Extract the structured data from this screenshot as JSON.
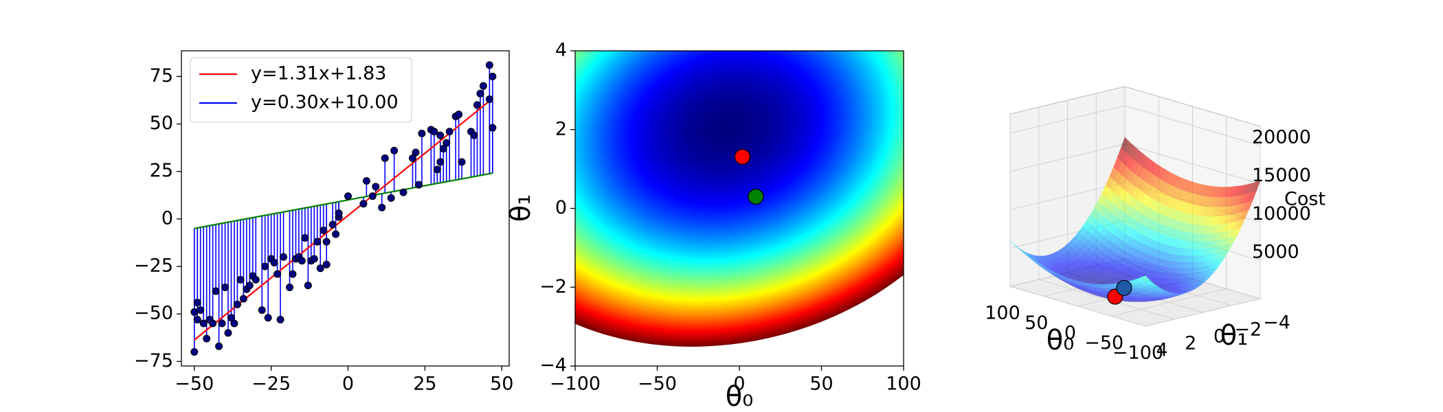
{
  "chart_data": [
    {
      "type": "scatter",
      "points": {
        "color": "#000080",
        "x": [
          -50,
          -50,
          -49,
          -49,
          -48,
          -47,
          -46,
          -45,
          -44,
          -43,
          -42,
          -41,
          -40,
          -39,
          -38,
          -37,
          -36,
          -35,
          -34,
          -33,
          -32,
          -31,
          -30,
          -28,
          -27,
          -26,
          -25,
          -24,
          -23,
          -22,
          -21,
          -19,
          -18,
          -17,
          -16,
          -15,
          -14,
          -13,
          -12,
          -11,
          -10,
          -9,
          -8,
          -7,
          -7,
          -5,
          -4,
          -3,
          -3,
          0,
          5,
          6,
          8,
          9,
          11,
          12,
          14,
          15,
          18,
          21,
          22,
          23,
          24,
          27,
          28,
          29,
          30,
          30,
          31,
          32,
          33,
          35,
          36,
          37,
          40,
          41,
          42,
          43,
          44,
          46,
          46,
          47,
          47
        ],
        "y": [
          -70,
          -49,
          -44,
          -53,
          -48,
          -55,
          -63,
          -53,
          -55,
          -38,
          -67,
          -55,
          -36,
          -60,
          -52,
          -55,
          -45,
          -32,
          -42,
          -37,
          -35,
          -30,
          -32,
          -48,
          -25,
          -52,
          -21,
          -23,
          -29,
          -53,
          -20,
          -36,
          -29,
          -21,
          -20,
          -22,
          -10,
          -35,
          -22,
          -21,
          -12,
          -26,
          -6,
          -12,
          -24,
          -3,
          -8,
          1,
          3,
          12,
          8,
          20,
          12,
          17,
          6,
          32,
          11,
          36,
          14,
          32,
          35,
          18,
          45,
          47,
          46,
          26,
          30,
          44,
          37,
          40,
          46,
          54,
          55,
          30,
          46,
          44,
          60,
          66,
          70,
          63,
          81,
          75,
          48
        ]
      },
      "series": [
        {
          "name": "y=1.31x+1.83",
          "color": "red",
          "x": [
            -50,
            47
          ],
          "values": [
            -63.7,
            63.4
          ]
        },
        {
          "name": "y=0.30x+10.00",
          "color": "blue",
          "line_color": "green",
          "x": [
            -50,
            47
          ],
          "values": [
            -5,
            24.1
          ]
        }
      ],
      "stem_color": "blue",
      "legend": "upper left",
      "xlim": [
        -54.2,
        52.4
      ],
      "ylim": [
        -77.4,
        88.5
      ],
      "xticks": [
        {
          "value": -50,
          "label": "−50"
        },
        {
          "value": -25,
          "label": "−25"
        },
        0,
        25,
        50
      ],
      "yticks": [
        {
          "value": -75,
          "label": "−75"
        },
        {
          "value": -50,
          "label": "−50"
        },
        {
          "value": -25,
          "label": "−25"
        },
        0,
        25,
        50,
        75
      ]
    },
    {
      "type": "contour",
      "xlabel": "θ₀",
      "ylabel": "θ₁",
      "colormap": "jet",
      "xlim": [
        -100,
        100
      ],
      "ylim": [
        -4,
        4
      ],
      "xticks": [
        {
          "value": -100,
          "label": "−100"
        },
        {
          "value": -50,
          "label": "−50"
        },
        0,
        50,
        100
      ],
      "yticks": [
        {
          "value": -4,
          "label": "−4"
        },
        {
          "value": -2,
          "label": "−2"
        },
        0,
        2,
        4
      ],
      "points": [
        {
          "x": 1.83,
          "y": 1.31,
          "color": "red"
        },
        {
          "x": 10,
          "y": 0.3,
          "color": "green"
        }
      ]
    },
    {
      "type": "surface",
      "xlabel": "θ₀",
      "ylabel": "θ₁",
      "zlabel": "Cost",
      "colormap": "jet",
      "xlim": [
        -100,
        100
      ],
      "ylim": [
        -4,
        4
      ],
      "zlim": [
        0,
        22500
      ],
      "xticks": [
        100,
        50,
        0,
        {
          "value": -50,
          "label": "−50"
        },
        {
          "value": -100,
          "label": "−100"
        }
      ],
      "yticks": [
        {
          "value": -4,
          "label": "−4"
        },
        {
          "value": -2,
          "label": "−2"
        },
        0,
        2,
        4
      ],
      "zticks": [
        5000,
        10000,
        15000,
        20000
      ],
      "points": [
        {
          "x": 1.83,
          "y": 1.31,
          "color": "red"
        },
        {
          "x": 10,
          "y": 0.3,
          "color": "#1f5aa8"
        }
      ]
    }
  ]
}
